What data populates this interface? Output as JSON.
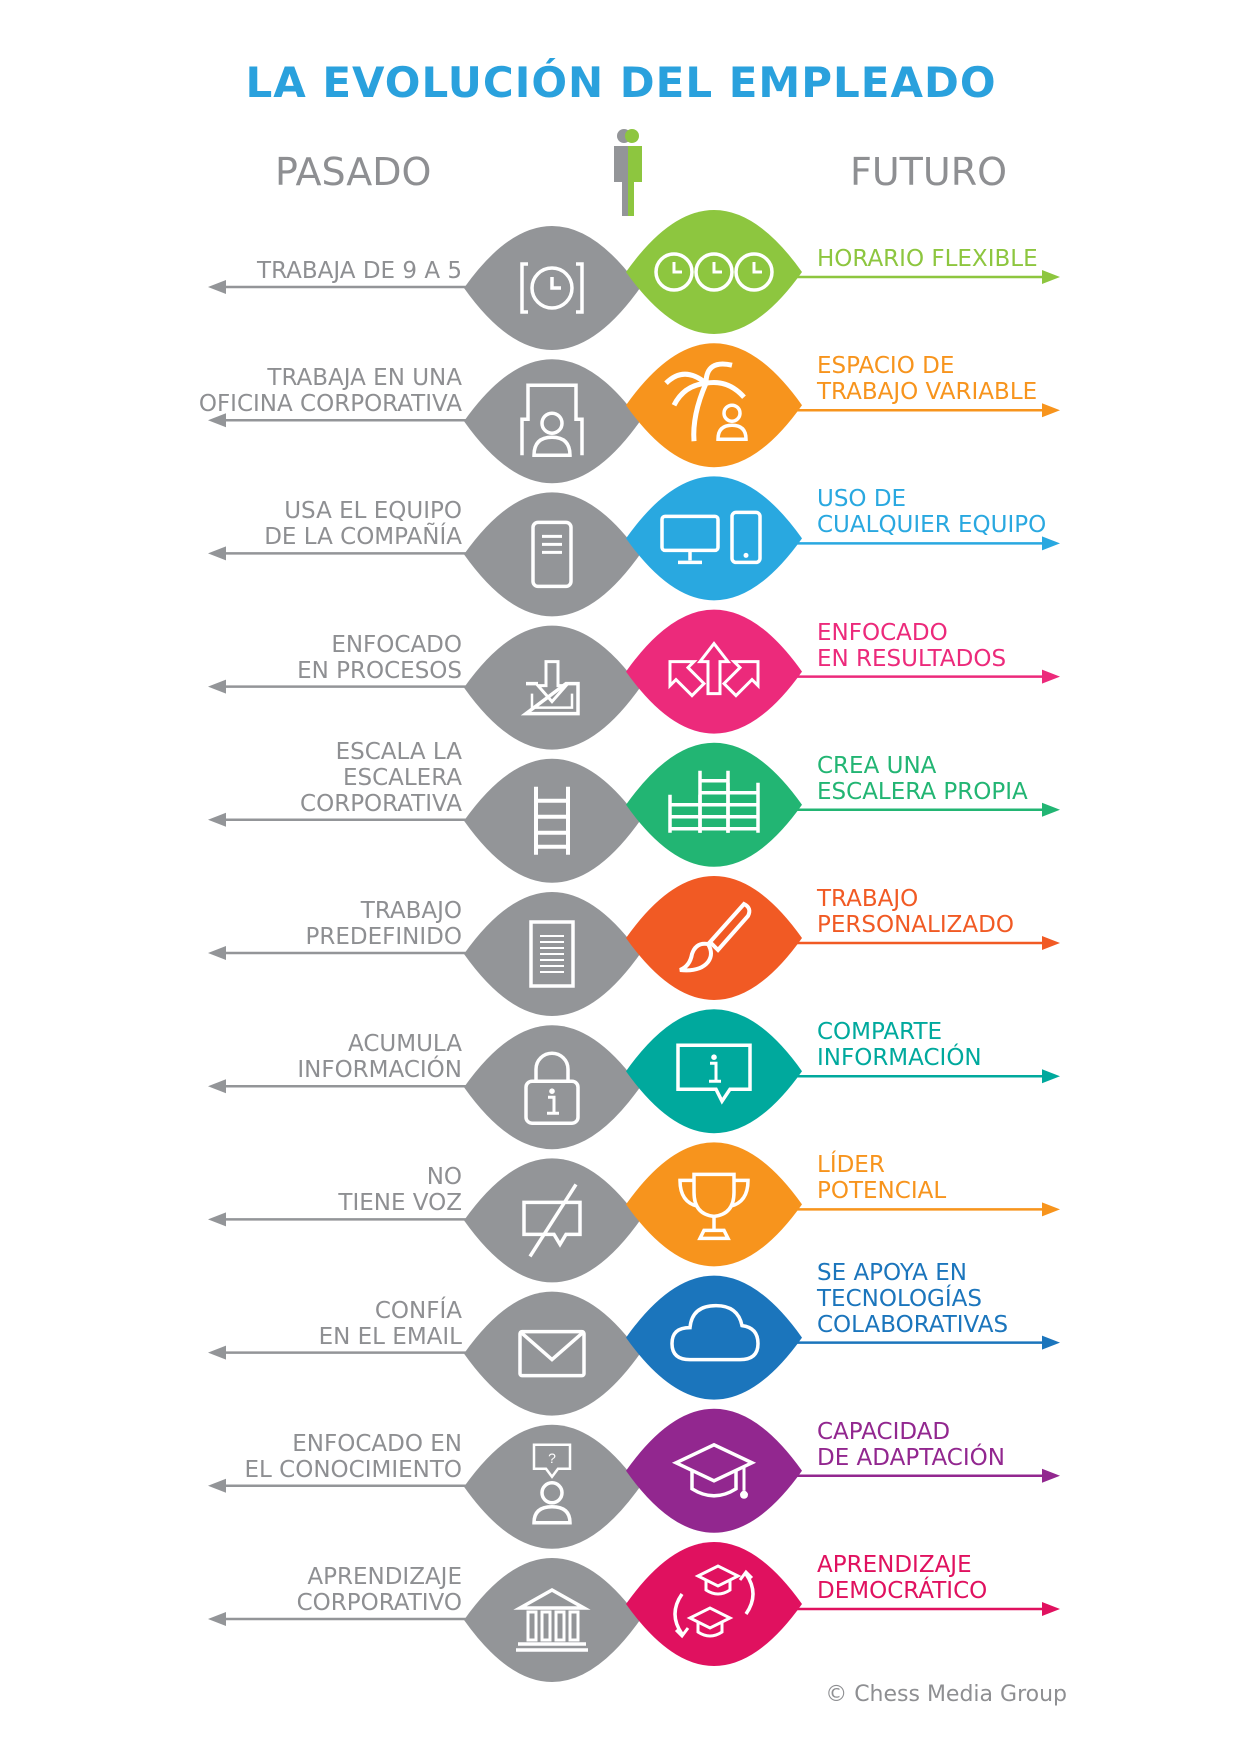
{
  "title": "LA EVOLUCIÓN DEL EMPLEADO",
  "columns": {
    "past": "PASADO",
    "future": "FUTURO"
  },
  "colors": {
    "title": "#2aa1dd",
    "past": "#939598",
    "text_gray": "#8e8f92"
  },
  "rows": [
    {
      "past": "TRABAJA DE 9 A 5",
      "future": "HORARIO FLEXIBLE",
      "color": "#8dc63f",
      "past_icon": "clock-icon",
      "future_icon": "three-clocks-icon"
    },
    {
      "past": "TRABAJA EN UNA\nOFICINA CORPORATIVA",
      "future": "ESPACIO DE\nTRABAJO VARIABLE",
      "color": "#f7941d",
      "past_icon": "office-desk-icon",
      "future_icon": "palm-tree-person-icon"
    },
    {
      "past": "USA EL EQUIPO\nDE LA COMPAÑÍA",
      "future": "USO DE\nCUALQUIER EQUIPO",
      "color": "#29a8e0",
      "past_icon": "server-icon",
      "future_icon": "monitor-phone-icon"
    },
    {
      "past": "ENFOCADO\nEN PROCESOS",
      "future": "ENFOCADO\nEN RESULTADOS",
      "color": "#ec2a7b",
      "past_icon": "inbox-download-icon",
      "future_icon": "arrows-out-icon"
    },
    {
      "past": "ESCALA LA\nESCALERA\nCORPORATIVA",
      "future": "CREA UNA\nESCALERA PROPIA",
      "color": "#22b573",
      "past_icon": "ladder-icon",
      "future_icon": "multi-ladder-icon"
    },
    {
      "past": "TRABAJO\nPREDEFINIDO",
      "future": "TRABAJO\nPERSONALIZADO",
      "color": "#f15a24",
      "past_icon": "document-icon",
      "future_icon": "paintbrush-icon"
    },
    {
      "past": "ACUMULA\nINFORMACIÓN",
      "future": "COMPARTE\nINFORMACIÓN",
      "color": "#00a99d",
      "past_icon": "padlock-info-icon",
      "future_icon": "chat-info-icon"
    },
    {
      "past": "NO\nTIENE VOZ",
      "future": "LÍDER\nPOTENCIAL",
      "color": "#f7941d",
      "past_icon": "muted-chat-icon",
      "future_icon": "trophy-icon"
    },
    {
      "past": "CONFÍA\nEN EL EMAIL",
      "future": "SE APOYA EN\nTECNOLOGÍAS\nCOLABORATIVAS",
      "color": "#1b75bc",
      "past_icon": "envelope-icon",
      "future_icon": "cloud-icon"
    },
    {
      "past": "ENFOCADO EN\nEL CONOCIMIENTO",
      "future": "CAPACIDAD\nDE ADAPTACIÓN",
      "color": "#92278f",
      "past_icon": "person-question-icon",
      "future_icon": "graduation-cap-icon"
    },
    {
      "past": "APRENDIZAJE\nCORPORATIVO",
      "future": "APRENDIZAJE\nDEMOCRÁTICO",
      "color": "#e0115f",
      "past_icon": "institution-icon",
      "future_icon": "caps-cycle-icon"
    }
  ],
  "credit": "© Chess Media Group"
}
